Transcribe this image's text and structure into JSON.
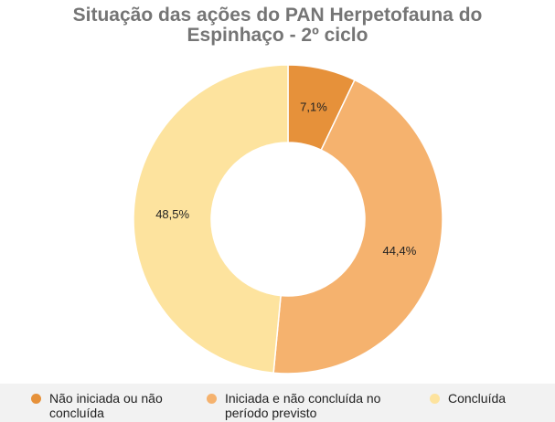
{
  "chart_data": {
    "type": "pie",
    "variant": "donut",
    "title": [
      "Situação das ações do PAN Herpetofauna do",
      "Espinhaço - 2º ciclo"
    ],
    "categories": [
      "Não iniciada ou não concluída",
      "Iniciada e não concluída no período previsto",
      "Concluída"
    ],
    "legend_lines": [
      [
        "Não iniciada ou não",
        "concluída"
      ],
      [
        "Iniciada e não concluída no",
        "período previsto"
      ],
      [
        "Concluída"
      ]
    ],
    "values": [
      7.1,
      44.4,
      48.5
    ],
    "data_labels": [
      "7,1%",
      "44,4%",
      "48,5%"
    ],
    "colors": [
      "#e6913a",
      "#f5b26e",
      "#fde39e"
    ],
    "legend_position": "bottom"
  }
}
